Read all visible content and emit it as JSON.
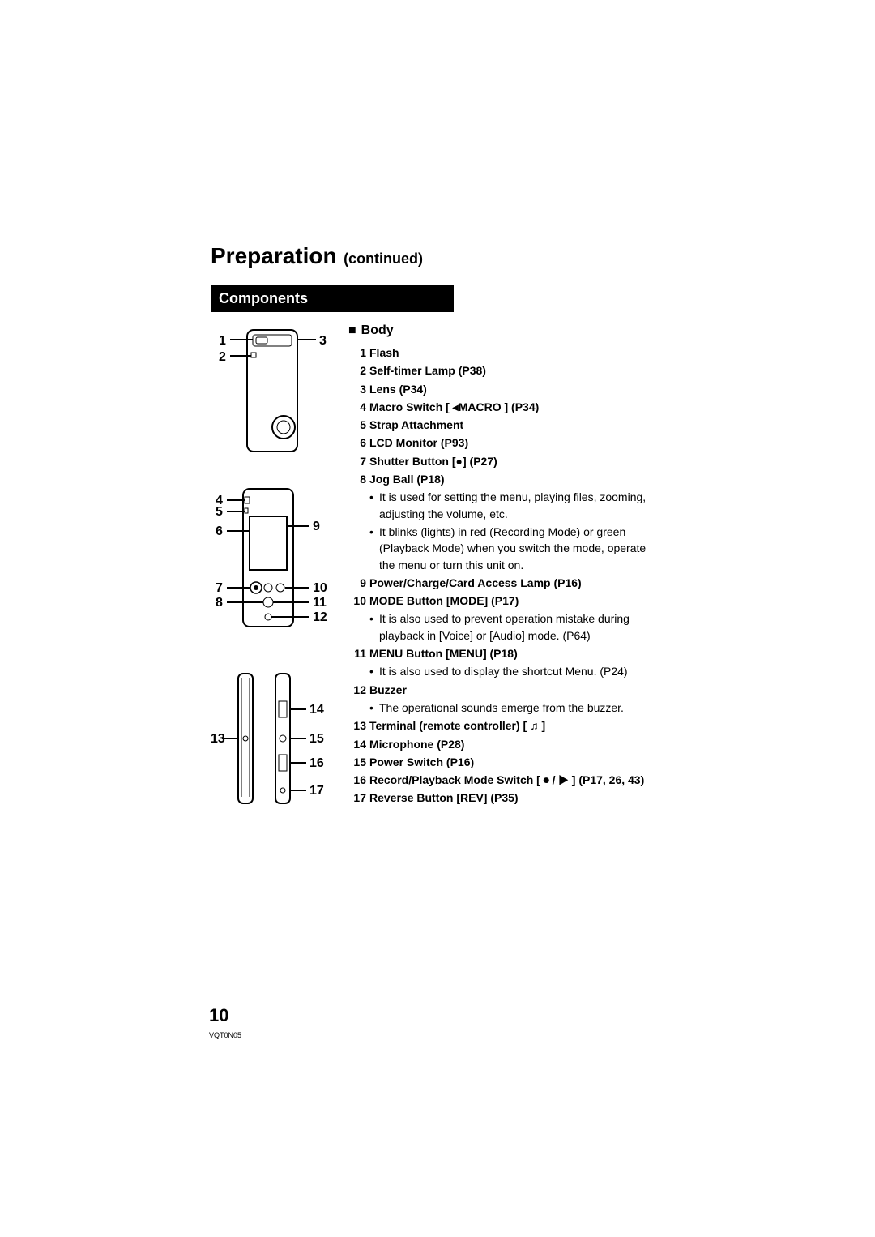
{
  "title_main": "Preparation",
  "title_sub": "(continued)",
  "section_title": "Components",
  "body_heading": "Body",
  "components": [
    {
      "n": "1",
      "label": "Flash"
    },
    {
      "n": "2",
      "label": "Self-timer Lamp (P38)"
    },
    {
      "n": "3",
      "label": "Lens (P34)"
    },
    {
      "n": "4",
      "label": "Macro Switch [ ◂MACRO ] (P34)"
    },
    {
      "n": "5",
      "label": "Strap Attachment"
    },
    {
      "n": "6",
      "label": "LCD Monitor (P93)"
    },
    {
      "n": "7",
      "label": "Shutter Button [●] (P27)"
    },
    {
      "n": "8",
      "label": "Jog Ball (P18)",
      "bullets": [
        "It is used for setting the menu, playing files, zooming, adjusting the volume, etc.",
        "It blinks (lights) in red (Recording Mode) or green (Playback Mode) when you switch the mode, operate the menu or turn this unit on."
      ]
    },
    {
      "n": "9",
      "label": "Power/Charge/Card Access Lamp (P16)"
    },
    {
      "n": "10",
      "label": "MODE Button [MODE] (P17)",
      "bullets": [
        "It is also used to prevent operation mistake during playback in [Voice] or [Audio] mode. (P64)"
      ]
    },
    {
      "n": "11",
      "label": "MENU Button [MENU] (P18)",
      "bullets": [
        "It is also used to display the shortcut Menu. (P24)"
      ]
    },
    {
      "n": "12",
      "label": "Buzzer",
      "bullets": [
        "The operational sounds emerge from the buzzer."
      ]
    },
    {
      "n": "13",
      "label": "Terminal (remote controller) [ ♫ ]"
    },
    {
      "n": "14",
      "label": "Microphone (P28)"
    },
    {
      "n": "15",
      "label": "Power Switch (P16)"
    },
    {
      "n": "16",
      "label": "Record/Playback Mode Switch [ ⏺ / ▶ ] (P17, 26, 43)"
    },
    {
      "n": "17",
      "label": "Reverse Button [REV] (P35)"
    }
  ],
  "page_number": "10",
  "doc_code": "VQT0N05",
  "diagram_labels": {
    "d1_1": "1",
    "d1_2": "2",
    "d1_3": "3",
    "d2_4": "4",
    "d2_5": "5",
    "d2_6": "6",
    "d2_7": "7",
    "d2_8": "8",
    "d2_9": "9",
    "d2_10": "10",
    "d2_11": "11",
    "d2_12": "12",
    "d3_13": "13",
    "d3_14": "14",
    "d3_15": "15",
    "d3_16": "16",
    "d3_17": "17"
  },
  "colors": {
    "text": "#000000",
    "bg": "#ffffff",
    "bar_bg": "#000000",
    "bar_text": "#ffffff"
  }
}
